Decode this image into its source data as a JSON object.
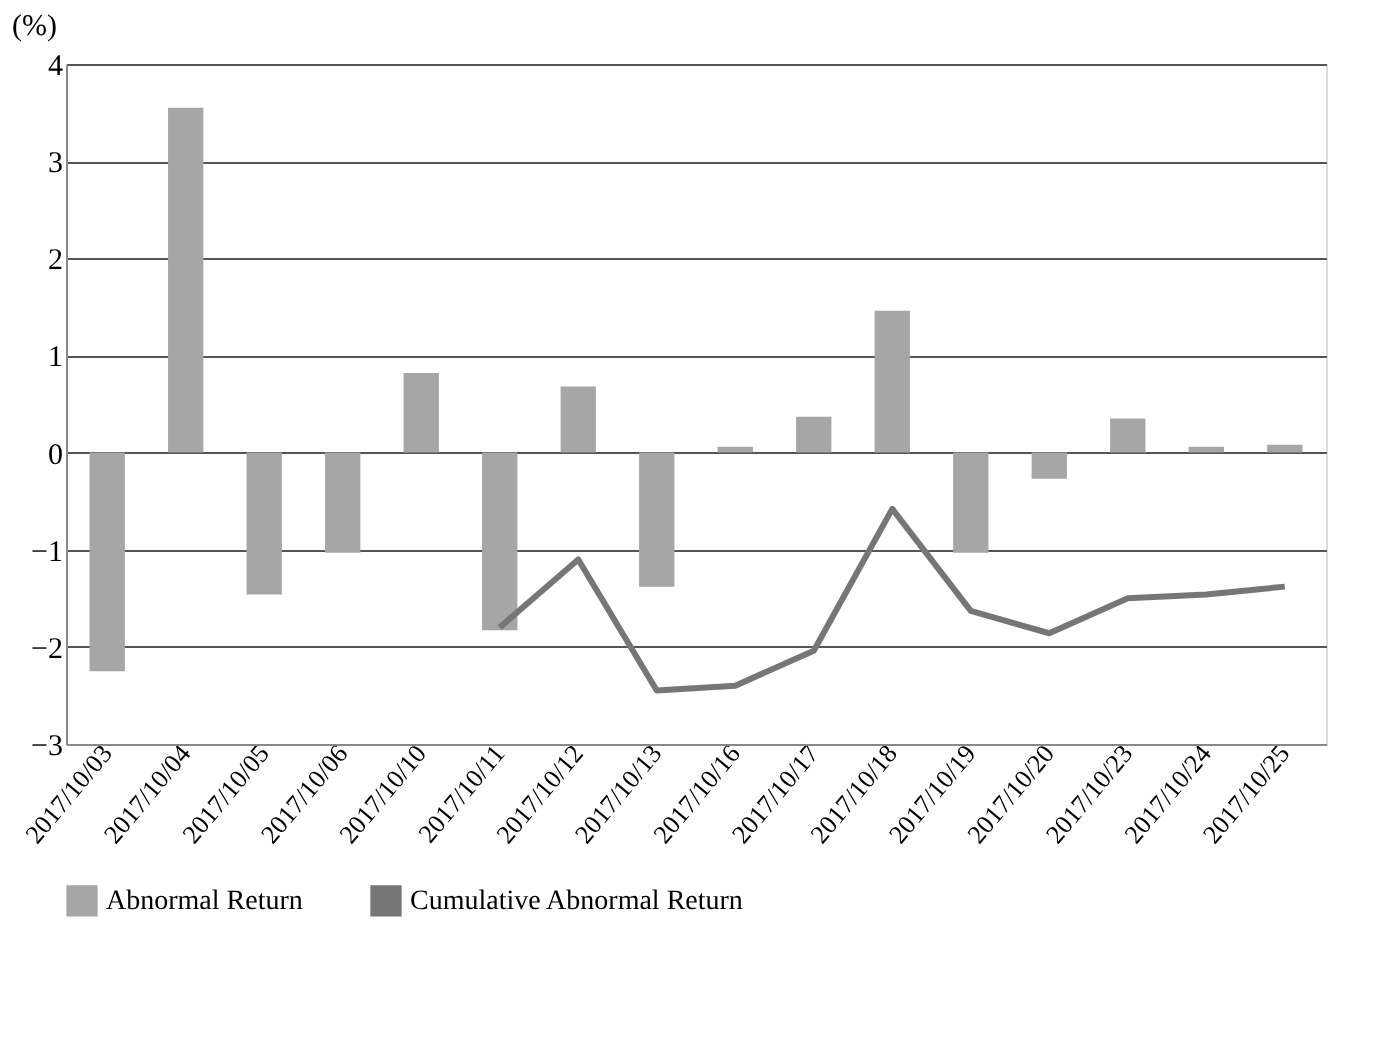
{
  "chart_data": {
    "type": "bar",
    "ylabel": "(%)",
    "categories": [
      "2017/10/03",
      "2017/10/04",
      "2017/10/05",
      "2017/10/06",
      "2017/10/10",
      "2017/10/11",
      "2017/10/12",
      "2017/10/13",
      "2017/10/16",
      "2017/10/17",
      "2017/10/18",
      "2017/10/19",
      "2017/10/20",
      "2017/10/23",
      "2017/10/24",
      "2017/10/25"
    ],
    "series": [
      {
        "name": "Abnormal Return",
        "color": "#a6a6a6",
        "values": [
          -2.25,
          3.55,
          -1.46,
          -1.03,
          0.82,
          -1.83,
          0.68,
          -1.38,
          0.06,
          0.37,
          1.46,
          -1.03,
          -0.27,
          0.35,
          0.06,
          0.08
        ]
      },
      {
        "name": "Cumulative Abnormal Return",
        "type": "line",
        "color": "#767676",
        "values": [
          null,
          null,
          null,
          null,
          null,
          -1.8,
          -1.1,
          -2.45,
          -2.4,
          -2.04,
          -0.58,
          -1.63,
          -1.86,
          -1.5,
          -1.46,
          -1.38
        ]
      }
    ],
    "ylim": [
      -3,
      4
    ],
    "yticks": [
      -3,
      -2,
      -1,
      0,
      1,
      2,
      3,
      4
    ],
    "grid": "y",
    "legend": "bottom"
  }
}
